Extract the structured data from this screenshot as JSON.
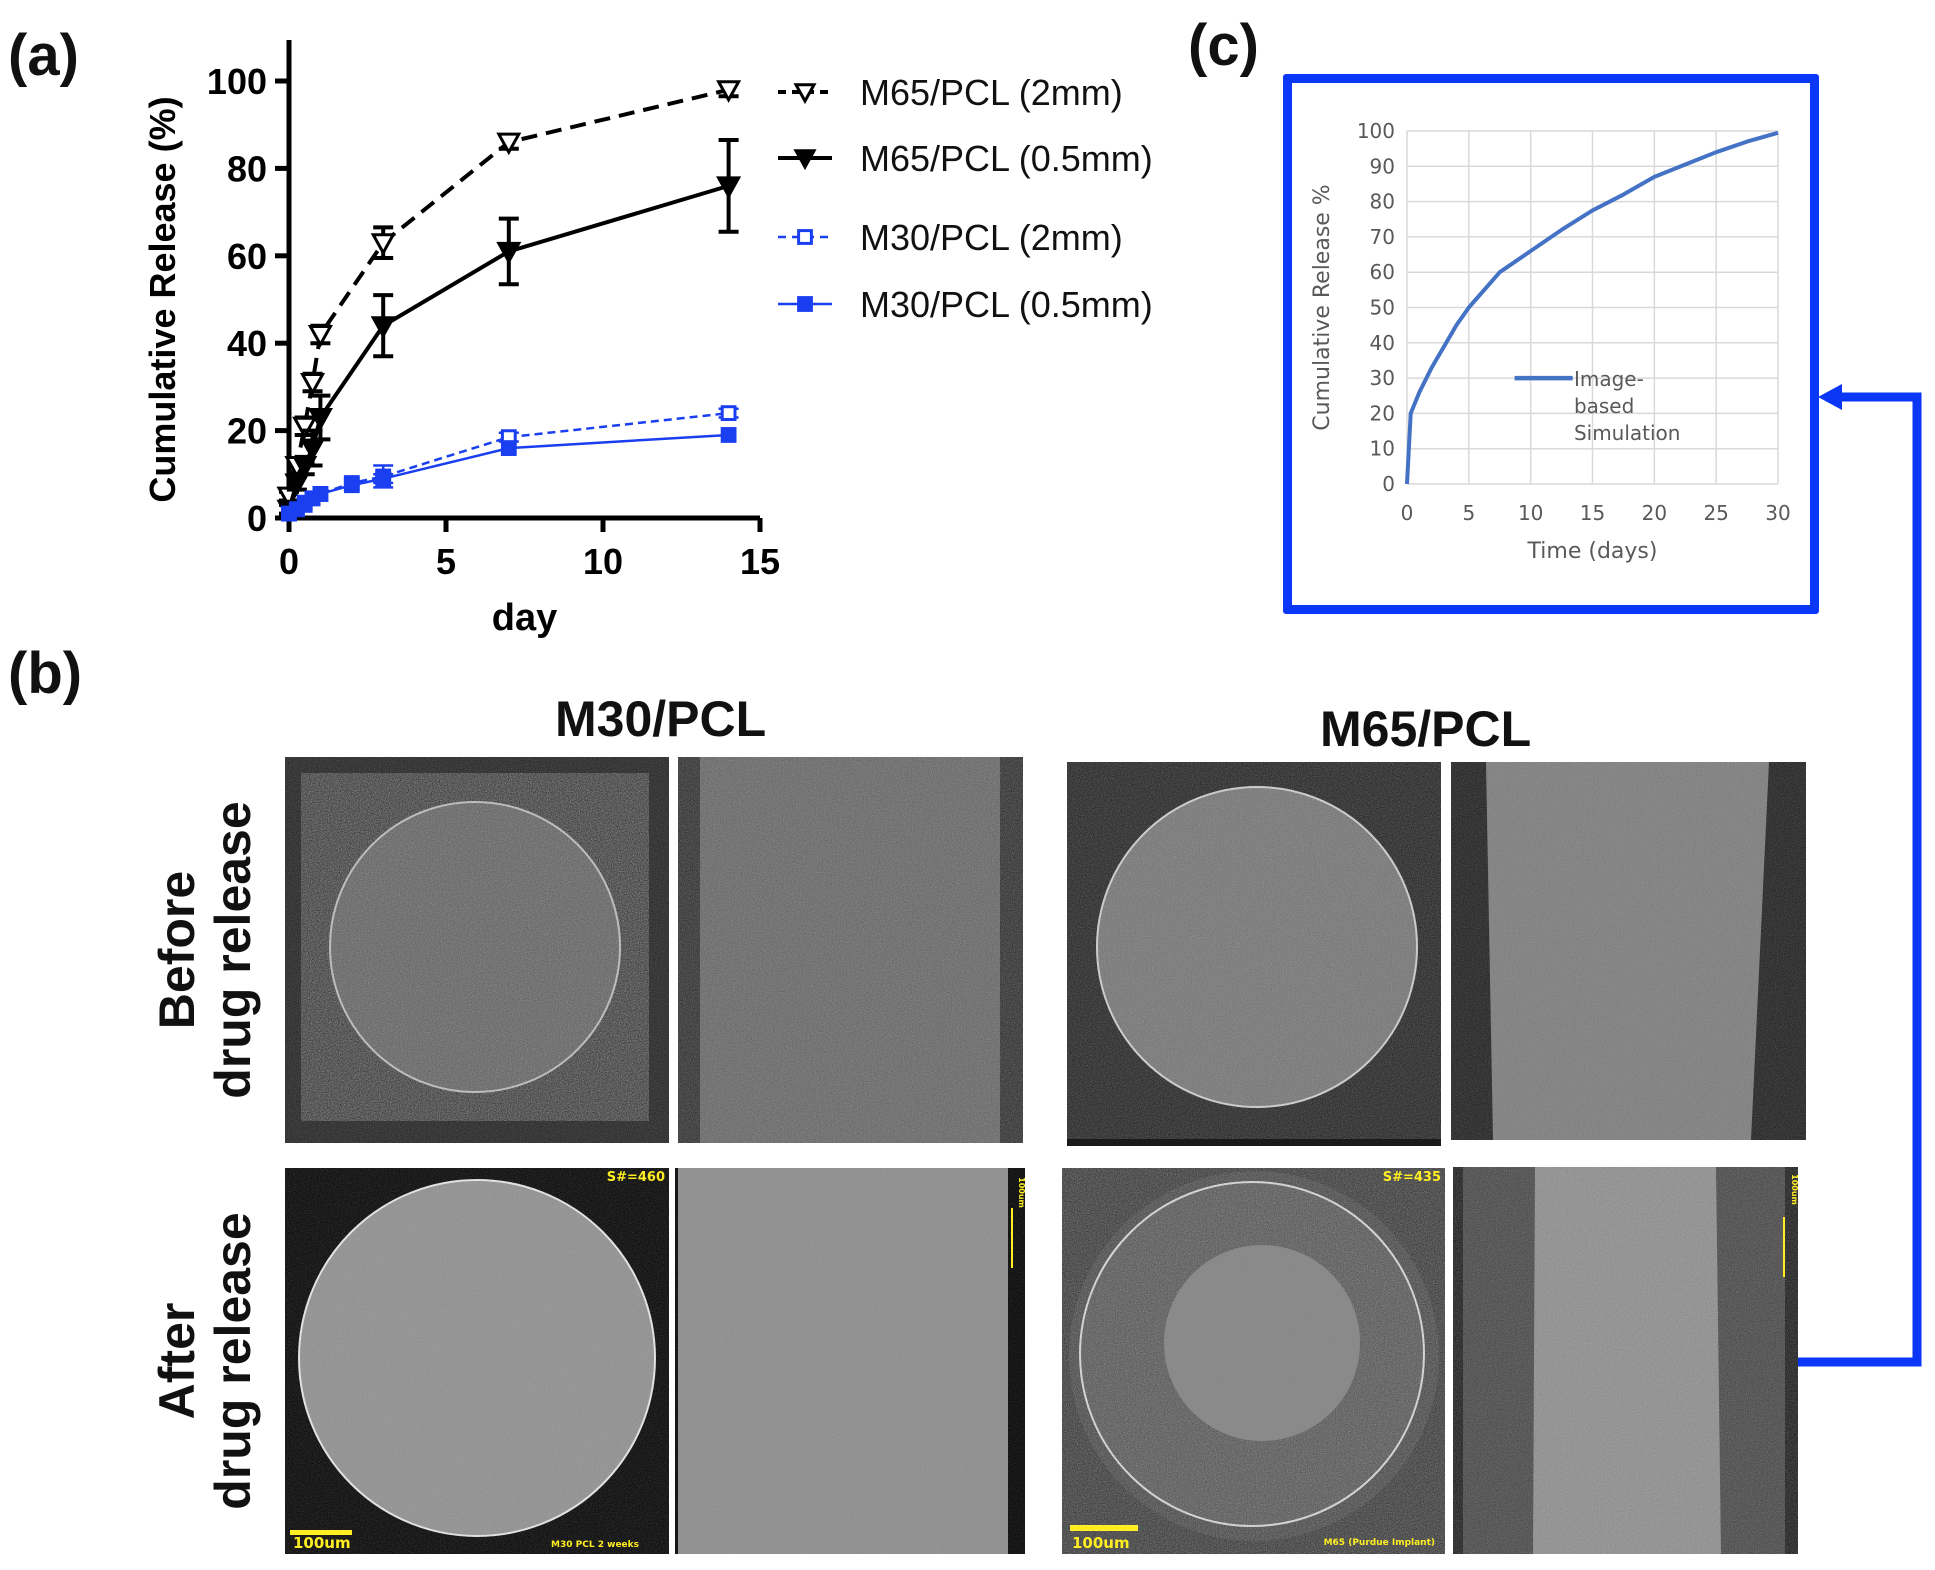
{
  "labels": {
    "a": "(a)",
    "b": "(b)",
    "c": "(c)"
  },
  "chart_data": [
    {
      "type": "line",
      "panel": "a",
      "title": "",
      "xlabel": "day",
      "ylabel": "Cumulative Release (%)",
      "xlim": [
        0,
        15
      ],
      "ylim": [
        0,
        110
      ],
      "xticks": [
        0,
        5,
        10,
        15
      ],
      "yticks": [
        0,
        20,
        40,
        60,
        80,
        100
      ],
      "grid": false,
      "legend_position": "right",
      "series": [
        {
          "name": "M65/PCL (2mm)",
          "color": "#000000",
          "dashed": true,
          "marker": "open-triangle-down",
          "x": [
            0,
            0.25,
            0.5,
            0.75,
            1,
            3,
            7,
            14
          ],
          "y": [
            5,
            12,
            21,
            31,
            42,
            63,
            86,
            98
          ],
          "err": [
            1,
            1.5,
            2,
            2,
            2,
            3.5,
            1.5,
            1.5
          ]
        },
        {
          "name": "M65/PCL (0.5mm)",
          "color": "#000000",
          "dashed": false,
          "marker": "filled-triangle-down",
          "x": [
            0,
            0.25,
            0.5,
            0.75,
            1,
            3,
            7,
            14
          ],
          "y": [
            2,
            8,
            12,
            16,
            23,
            44,
            61,
            76
          ],
          "err": [
            1,
            1.5,
            2,
            4,
            5,
            7,
            7.5,
            10.5
          ]
        },
        {
          "name": "M30/PCL (2mm)",
          "color": "#1a3ff0",
          "dashed": true,
          "marker": "open-square",
          "x": [
            0,
            0.25,
            0.5,
            0.75,
            1,
            2,
            3,
            7,
            14
          ],
          "y": [
            1,
            2,
            3,
            4.5,
            5.5,
            8,
            9.5,
            18.5,
            24
          ],
          "err": [
            0.5,
            0.5,
            0.5,
            0.5,
            0.5,
            0.5,
            2.5,
            1,
            1
          ]
        },
        {
          "name": "M30/PCL (0.5mm)",
          "color": "#1a3ff0",
          "dashed": false,
          "marker": "filled-square",
          "x": [
            0,
            0.25,
            0.5,
            0.75,
            1,
            2,
            3,
            7,
            14
          ],
          "y": [
            1,
            2,
            3.5,
            4.5,
            5.5,
            7.5,
            9,
            16,
            19
          ],
          "err": [
            0.5,
            0.5,
            0.5,
            0.5,
            0.5,
            0.5,
            1,
            0.8,
            0.8
          ]
        }
      ]
    },
    {
      "type": "line",
      "panel": "c",
      "title": "",
      "xlabel": "Time (days)",
      "ylabel": "Cumulative Release %",
      "xlim": [
        0,
        30
      ],
      "ylim": [
        0,
        100
      ],
      "xticks": [
        0,
        5,
        10,
        15,
        20,
        25,
        30
      ],
      "yticks": [
        0,
        10,
        20,
        30,
        40,
        50,
        60,
        70,
        80,
        90,
        100
      ],
      "grid": true,
      "legend_position": "center",
      "series": [
        {
          "name": "Image-based Simulation",
          "legend_lines": [
            "Image-",
            "based",
            "Simulation"
          ],
          "color": "#4472c4",
          "x": [
            0,
            0.3,
            1,
            2,
            3,
            4,
            5,
            7.5,
            10,
            12.5,
            15,
            17.5,
            20,
            22.5,
            25,
            27.5,
            30
          ],
          "y": [
            0,
            20,
            26,
            33,
            39,
            45,
            50,
            60,
            66,
            72,
            77.5,
            82,
            87,
            90.5,
            94,
            97,
            99.5
          ]
        }
      ]
    }
  ],
  "panel_b": {
    "columns": [
      "M30/PCL",
      "M65/PCL"
    ],
    "rows": [
      {
        "line1": "Before",
        "line2": "drug release"
      },
      {
        "line1": "After",
        "line2": "drug release"
      }
    ],
    "overlays": {
      "m30_after_slice": "S#=460",
      "m30_after_scale": "100um",
      "m30_after_caption": "M30 PCL 2 weeks",
      "m30_after_side_scale": "100um",
      "m65_after_slice": "S#=435",
      "m65_after_scale": "100um",
      "m65_after_caption": "M65 (Purdue Implant)",
      "m65_after_side_scale": "100um"
    }
  },
  "colors": {
    "connector": "#0a36f5",
    "sim_line": "#4472c4",
    "series_blue": "#1a3ff0"
  }
}
